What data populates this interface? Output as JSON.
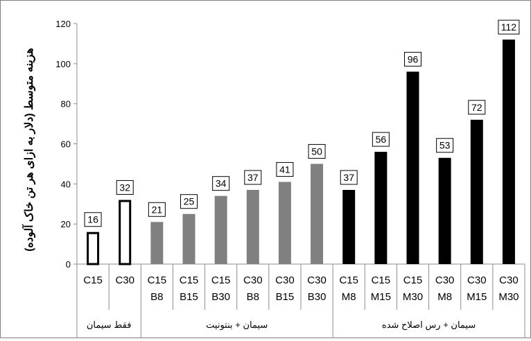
{
  "chart_data": {
    "type": "bar",
    "ylabel": "هزینه متوسط (دلار به ازای هر تن خاک آلوده)",
    "ylim": [
      0,
      120
    ],
    "yticks": [
      "0",
      "20",
      "40",
      "60",
      "80",
      "100",
      "120"
    ],
    "grid": false,
    "categories": [
      {
        "line1": "C15",
        "line2": ""
      },
      {
        "line1": "C30",
        "line2": ""
      },
      {
        "line1": "C15",
        "line2": "B8"
      },
      {
        "line1": "C15",
        "line2": "B15"
      },
      {
        "line1": "C15",
        "line2": "B30"
      },
      {
        "line1": "C30",
        "line2": "B8"
      },
      {
        "line1": "C30",
        "line2": "B15"
      },
      {
        "line1": "C30",
        "line2": "B30"
      },
      {
        "line1": "C15",
        "line2": "M8"
      },
      {
        "line1": "C15",
        "line2": "M15"
      },
      {
        "line1": "C15",
        "line2": "M30"
      },
      {
        "line1": "C30",
        "line2": "M8"
      },
      {
        "line1": "C30",
        "line2": "M15"
      },
      {
        "line1": "C30",
        "line2": "M30"
      }
    ],
    "values": [
      16,
      32,
      21,
      25,
      34,
      37,
      41,
      50,
      37,
      56,
      96,
      53,
      72,
      112
    ],
    "groups": [
      {
        "name": "فقط سیمان",
        "count": 2,
        "style": "outline"
      },
      {
        "name": "سیمان + بنتونیت",
        "count": 6,
        "style": "gray"
      },
      {
        "name": "سیمان + رس اصلاح شده",
        "count": 6,
        "style": "black"
      }
    ],
    "colors": {
      "outline": "#000000",
      "gray": "#808080",
      "black": "#000000",
      "axis": "#8c8c8c"
    }
  }
}
